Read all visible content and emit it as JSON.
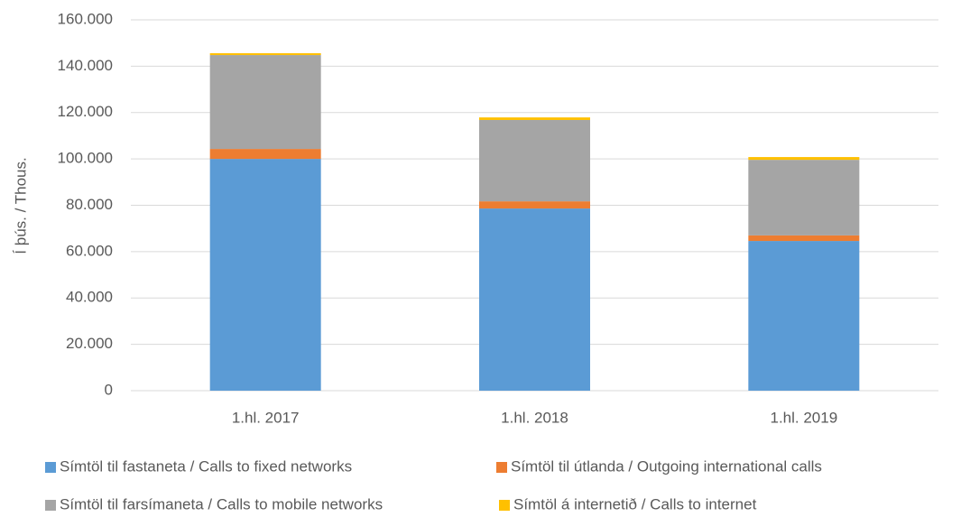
{
  "chart_data": {
    "type": "bar",
    "stacked": true,
    "y_label": "Í þús. / Thous.",
    "categories": [
      "1.hl. 2017",
      "1.hl. 2018",
      "1.hl. 2019"
    ],
    "series": [
      {
        "name": "Símtöl til fastaneta / Calls to fixed networks",
        "color": "#5b9bd5",
        "values": [
          100000,
          78600,
          64600
        ]
      },
      {
        "name": "Símtöl til útlanda / Outgoing international calls",
        "color": "#ed7d31",
        "values": [
          4300,
          3100,
          2400
        ]
      },
      {
        "name": "Símtöl til farsímaneta / Calls to mobile networks",
        "color": "#a5a5a5",
        "values": [
          40500,
          35100,
          32600
        ]
      },
      {
        "name": "Símtöl á internetið / Calls to internet",
        "color": "#ffc000",
        "values": [
          800,
          1100,
          1200
        ]
      }
    ],
    "ylim": [
      0,
      160000
    ],
    "yticks": [
      0,
      {
        "value": 20000,
        "label": "20.000"
      },
      {
        "value": 40000,
        "label": "40.000"
      },
      {
        "value": 60000,
        "label": "60.000"
      },
      {
        "value": 80000,
        "label": "80.000"
      },
      {
        "value": 100000,
        "label": "100.000"
      },
      {
        "value": 120000,
        "label": "120.000"
      },
      {
        "value": 140000,
        "label": "140.000"
      },
      {
        "value": 160000,
        "label": "160.000"
      }
    ],
    "grid": true
  }
}
